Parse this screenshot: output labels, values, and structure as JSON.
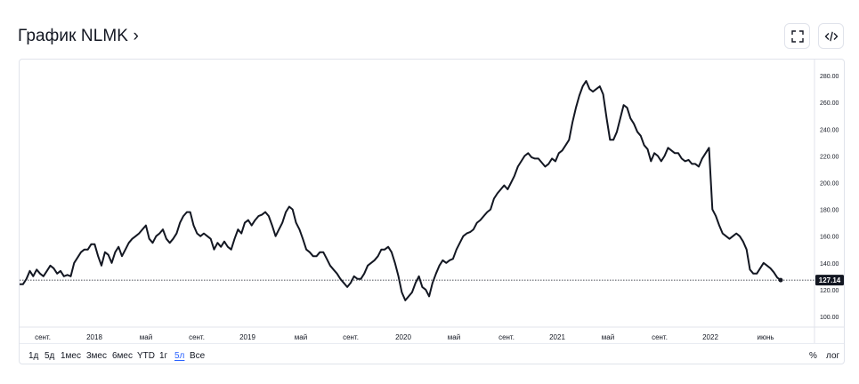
{
  "header": {
    "title": "График NLMK ›"
  },
  "toolbar": {
    "fullscreen_icon": "fullscreen-icon",
    "embed_icon": "embed-code-icon"
  },
  "timeframes": [
    "1д",
    "5д",
    "1мес",
    "3мес",
    "6мес",
    "YTD",
    "1г",
    "5л",
    "Все"
  ],
  "active_timeframe": "5л",
  "options": {
    "percent": "%",
    "log": "лог"
  },
  "colors": {
    "line": "#131722",
    "accent": "#2962ff",
    "grid": "#e0e3eb"
  },
  "chart_data": {
    "type": "line",
    "series": [
      {
        "values": [
          124,
          124,
          128,
          134,
          130,
          135,
          132,
          130,
          134,
          138,
          136,
          132,
          134,
          130,
          131,
          130,
          140,
          144,
          148,
          150,
          150,
          154,
          154,
          145,
          138,
          148,
          146,
          140,
          148,
          152,
          145,
          150,
          155,
          158,
          160,
          162,
          165,
          168,
          158,
          155,
          160,
          162,
          165,
          158,
          155,
          158,
          162,
          170,
          175,
          178,
          178,
          168,
          162,
          160,
          162,
          160,
          158,
          150,
          155,
          152,
          156,
          152,
          150,
          158,
          165,
          162,
          170,
          172,
          168,
          172,
          175,
          176,
          178,
          175,
          168,
          160,
          165,
          170,
          178,
          182,
          180,
          170,
          165,
          158,
          150,
          148,
          145,
          145,
          148,
          148,
          143,
          138,
          135,
          132,
          128,
          125,
          122,
          125,
          130,
          128,
          128,
          132,
          138,
          140,
          142,
          145,
          150,
          150,
          152,
          148,
          140,
          130,
          118,
          112,
          115,
          118,
          125,
          130,
          122,
          120,
          115,
          125,
          132,
          138,
          142,
          140,
          142,
          143,
          150,
          155,
          160,
          162,
          163,
          165,
          170,
          172,
          175,
          178,
          180,
          188,
          192,
          195,
          198,
          195,
          200,
          205,
          212,
          216,
          220,
          222,
          219,
          218,
          218,
          215,
          212,
          214,
          218,
          216,
          222,
          224,
          228,
          232,
          245,
          256,
          265,
          272,
          276,
          270,
          268,
          270,
          272,
          266,
          248,
          232,
          232,
          238,
          248,
          258,
          256,
          248,
          244,
          238,
          235,
          228,
          225,
          216,
          222,
          220,
          216,
          220,
          226,
          224,
          222,
          222,
          218,
          216,
          217,
          214,
          214,
          212,
          218,
          222,
          226,
          180,
          175,
          168,
          162,
          160,
          158,
          160,
          162,
          160,
          156,
          150,
          135,
          132,
          132,
          136,
          140,
          138,
          136,
          133,
          129,
          127.14
        ],
        "last_value": "127.14"
      }
    ],
    "x_labels": [
      "сент.",
      "2018",
      "май",
      "сент.",
      "2019",
      "май",
      "сент.",
      "2020",
      "май",
      "сент.",
      "2021",
      "май",
      "сент.",
      "2022",
      "июнь"
    ],
    "y_ticks": [
      "100.00",
      "120.00",
      "140.00",
      "160.00",
      "180.00",
      "200.00",
      "220.00",
      "240.00",
      "260.00",
      "280.00"
    ],
    "ylim": [
      92,
      292
    ],
    "grid": false,
    "title": "",
    "xlabel": "",
    "ylabel": ""
  }
}
